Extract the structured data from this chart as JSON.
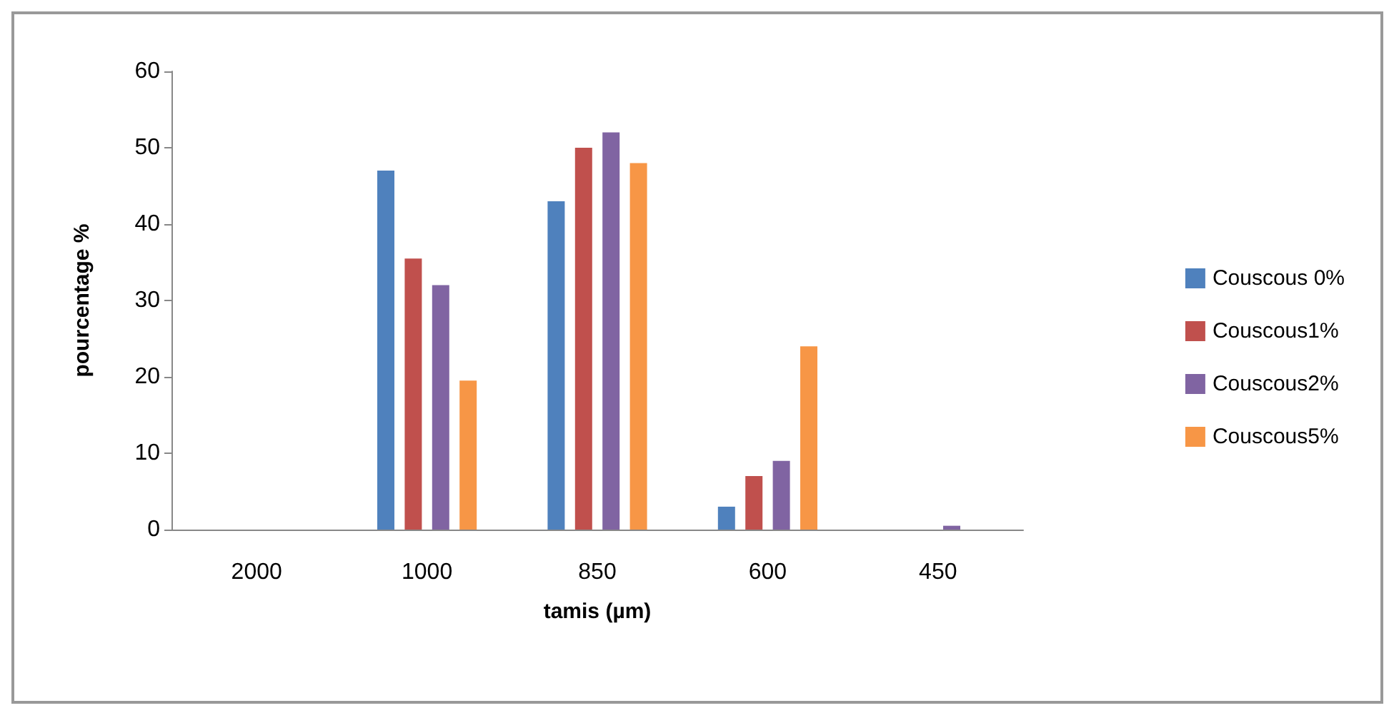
{
  "chart_data": {
    "type": "bar",
    "xlabel": "tamis (µm)",
    "ylabel": "pourcentage %",
    "categories": [
      "2000",
      "1000",
      "850",
      "600",
      "450"
    ],
    "series": [
      {
        "name": "Couscous 0%",
        "color": "#4f81bd",
        "values": [
          0,
          47,
          43,
          3,
          0
        ]
      },
      {
        "name": "Couscous1%",
        "color": "#c0504d",
        "values": [
          0,
          35.5,
          50,
          7,
          0
        ]
      },
      {
        "name": "Couscous2%",
        "color": "#8064a2",
        "values": [
          0,
          32,
          52,
          9,
          0.5
        ]
      },
      {
        "name": "Couscous5%",
        "color": "#f79646",
        "values": [
          0,
          19.5,
          48,
          24,
          0
        ]
      }
    ],
    "ylim": [
      0,
      60
    ],
    "yticks": [
      0,
      10,
      20,
      30,
      40,
      50,
      60
    ],
    "grid": false,
    "legend": "right"
  }
}
